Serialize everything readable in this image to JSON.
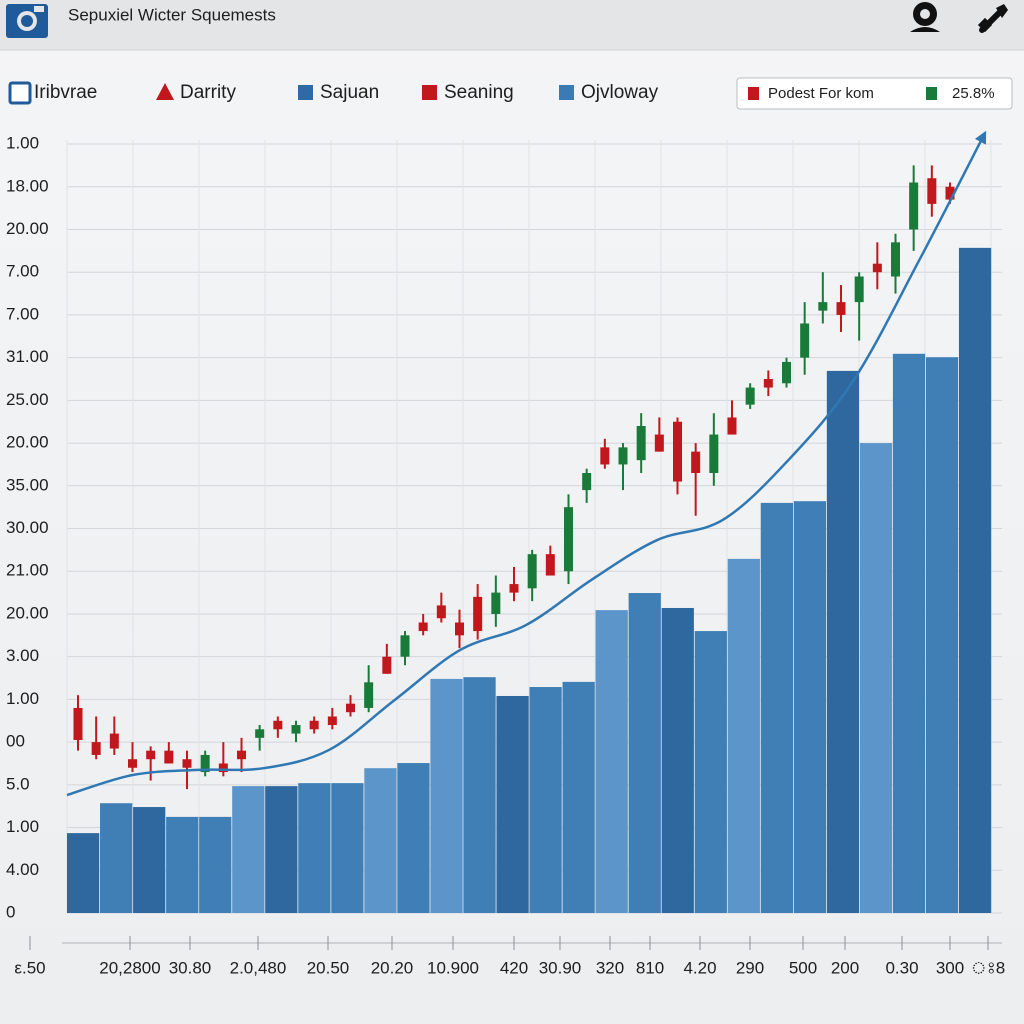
{
  "header": {
    "title": "Sepuxiel Wicter Squemests"
  },
  "legend": {
    "items": [
      {
        "name": "Iribvrae",
        "color": "#1f5a9a",
        "shape": "outline"
      },
      {
        "name": "Darrity",
        "color": "#c0181c",
        "shape": "triangle"
      },
      {
        "name": "Sajuan",
        "color": "#2e6aa6",
        "shape": "square"
      },
      {
        "name": "Seaning",
        "color": "#c0181c",
        "shape": "square"
      },
      {
        "name": "Ojvloway",
        "color": "#3a7ab6",
        "shape": "square"
      }
    ]
  },
  "info_box": {
    "items": [
      {
        "text": "Podest For kom",
        "color": "#c0181c"
      },
      {
        "text": "25.8%",
        "color": "#1a7a3a"
      }
    ]
  },
  "chart_data": {
    "type": "combo",
    "ylim": [
      0,
      18.5
    ],
    "yticks": [
      {
        "value": 18,
        "label": "1.00"
      },
      {
        "value": 17,
        "label": "18.00"
      },
      {
        "value": 16,
        "label": "20.00"
      },
      {
        "value": 15,
        "label": "7.00"
      },
      {
        "value": 14,
        "label": "7.00"
      },
      {
        "value": 13,
        "label": "31.00"
      },
      {
        "value": 12,
        "label": "25.00"
      },
      {
        "value": 11,
        "label": "20.00"
      },
      {
        "value": 10,
        "label": "35.00"
      },
      {
        "value": 9,
        "label": "30.00"
      },
      {
        "value": 8,
        "label": "21.00"
      },
      {
        "value": 7,
        "label": "20.00"
      },
      {
        "value": 6,
        "label": "3.00"
      },
      {
        "value": 5,
        "label": "1.00"
      },
      {
        "value": 4,
        "label": "00"
      },
      {
        "value": 3,
        "label": "5.0"
      },
      {
        "value": 2,
        "label": "1.00"
      },
      {
        "value": 1,
        "label": "4.00"
      },
      0
    ],
    "grid": true,
    "x_labels": [
      "ε.50",
      "20,2800",
      "30.80",
      "2.0,480",
      "20.50",
      "20.20",
      "10.900",
      "420",
      "30.90",
      "320",
      "810",
      "4.20",
      "290",
      "500",
      "200",
      "0.30",
      "300",
      "ঃ8"
    ],
    "bars": {
      "type": "bar",
      "values": [
        1.87,
        2.57,
        2.48,
        2.25,
        2.25,
        2.97,
        2.97,
        3.04,
        3.04,
        3.39,
        3.51,
        5.48,
        5.52,
        5.08,
        5.29,
        5.41,
        7.09,
        7.49,
        7.14,
        6.6,
        8.29,
        9.6,
        9.64,
        12.69,
        11.0,
        13.09,
        13.01,
        15.57
      ],
      "colors": [
        "#2e689f",
        "#3f7fb6",
        "#2e689f",
        "#3f7fb6",
        "#3f7fb6",
        "#5b95c9",
        "#2e689f",
        "#3f7fb6",
        "#3f7fb6",
        "#5b95c9",
        "#3f7fb6",
        "#5b95c9",
        "#3f7fb6",
        "#2e689f",
        "#3f7fb6",
        "#3f7fb6",
        "#5b95c9",
        "#3f7fb6",
        "#2e689f",
        "#3f7fb6",
        "#5b95c9",
        "#3f7fb6",
        "#3f7fb6",
        "#2e689f",
        "#5b95c9",
        "#3f7fb6",
        "#3f7fb6",
        "#2e689f"
      ]
    },
    "candles": {
      "type": "candlestick",
      "up_color": "#1a7a3a",
      "down_color": "#c0181c",
      "open": [
        4.8,
        4.0,
        4.2,
        3.6,
        3.8,
        3.8,
        3.6,
        3.3,
        3.5,
        3.8,
        4.1,
        4.5,
        4.2,
        4.5,
        4.6,
        4.9,
        4.8,
        6.0,
        6.0,
        6.8,
        7.2,
        6.8,
        7.4,
        7.0,
        7.7,
        7.6,
        8.4,
        8.0,
        9.9,
        10.9,
        10.5,
        10.6,
        11.2,
        11.5,
        10.8,
        10.3,
        11.6,
        11.9,
        12.5,
        12.4,
        13.0,
        14.1,
        14.3,
        14.3,
        15.2,
        14.9,
        16.0,
        17.2,
        17.0
      ],
      "high": [
        5.1,
        4.6,
        4.6,
        4.0,
        3.9,
        4.0,
        3.8,
        3.8,
        4.0,
        4.1,
        4.4,
        4.6,
        4.5,
        4.6,
        4.8,
        5.1,
        5.8,
        6.3,
        6.6,
        7.0,
        7.5,
        7.1,
        7.7,
        7.9,
        8.1,
        8.5,
        8.6,
        9.8,
        10.4,
        11.1,
        11.0,
        11.7,
        11.6,
        11.6,
        11.0,
        11.7,
        12.0,
        12.4,
        12.7,
        13.0,
        14.3,
        15.0,
        14.7,
        15.0,
        15.7,
        15.9,
        17.5,
        17.5,
        17.1
      ],
      "low": [
        3.8,
        3.6,
        3.7,
        3.3,
        3.1,
        3.5,
        2.9,
        3.2,
        3.2,
        3.3,
        3.8,
        4.1,
        4.0,
        4.2,
        4.3,
        4.6,
        4.7,
        5.6,
        5.8,
        6.5,
        6.8,
        6.2,
        6.4,
        6.7,
        7.3,
        7.3,
        7.9,
        7.7,
        9.6,
        10.4,
        9.9,
        10.3,
        10.8,
        9.8,
        9.3,
        10.0,
        11.2,
        11.8,
        12.1,
        12.3,
        12.6,
        13.8,
        13.6,
        13.4,
        14.6,
        14.5,
        15.5,
        16.3,
        16.6
      ],
      "close": [
        4.05,
        3.7,
        3.85,
        3.4,
        3.6,
        3.5,
        3.4,
        3.7,
        3.3,
        3.6,
        4.3,
        4.3,
        4.4,
        4.3,
        4.4,
        4.7,
        5.4,
        5.6,
        6.5,
        6.6,
        6.9,
        6.5,
        6.6,
        7.5,
        7.5,
        8.4,
        7.9,
        9.5,
        10.3,
        10.5,
        10.9,
        11.4,
        10.8,
        10.1,
        10.3,
        11.2,
        11.2,
        12.3,
        12.3,
        12.9,
        13.8,
        14.3,
        14.0,
        14.9,
        15.0,
        15.7,
        17.1,
        16.6,
        16.7
      ]
    },
    "line": {
      "type": "line",
      "color": "#2f78b4",
      "values": [
        2.76,
        3.23,
        3.35,
        3.39,
        3.82,
        4.99,
        6.16,
        6.74,
        7.8,
        8.73,
        9.2,
        10.6,
        12.48,
        15.29,
        18.26
      ]
    }
  }
}
